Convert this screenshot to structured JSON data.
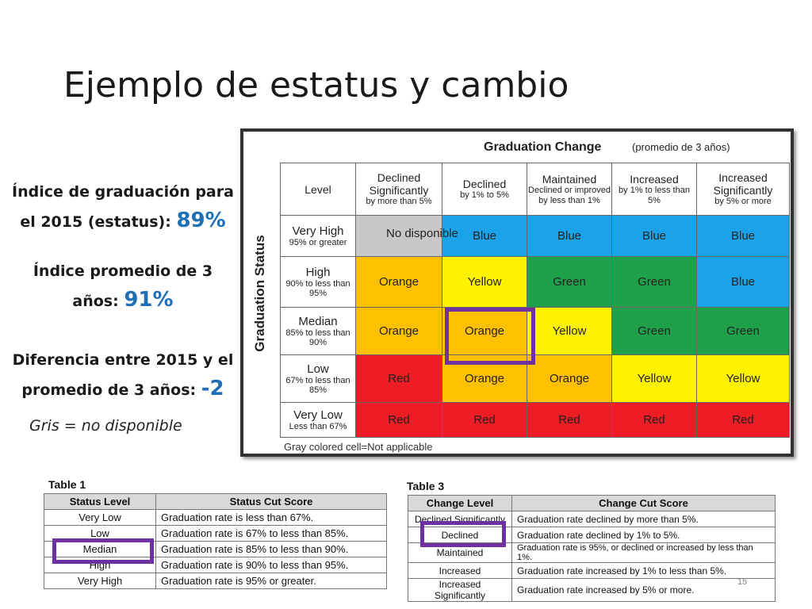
{
  "title": "Ejemplo de estatus y cambio",
  "stats": {
    "grad_line1": "Índice de graduación para",
    "grad_line2": "el 2015 (estatus):",
    "grad_value": "89%",
    "avg_line1": "Índice promedio de 3",
    "avg_line2": "años:",
    "avg_value": "91%",
    "diff_line1": "Diferencia entre 2015 y el",
    "diff_line2": "promedio de 3 años:",
    "diff_value": "-2",
    "gray_note": "Gris = no disponible"
  },
  "matrix": {
    "heading": "Graduation Change",
    "subheading": "(promedio de 3 años)",
    "axis_label": "Graduation Status",
    "corner": "Level",
    "columns": [
      {
        "title": "Declined Significantly",
        "sub": "by more than 5%"
      },
      {
        "title": "Declined",
        "sub": "by 1% to 5%"
      },
      {
        "title": "Maintained",
        "sub": "Declined or improved by less than 1%"
      },
      {
        "title": "Increased",
        "sub": "by 1% to less than 5%"
      },
      {
        "title": "Increased Significantly",
        "sub": "by 5% or more"
      }
    ],
    "rows": [
      {
        "level": "Very High",
        "range": "95% or greater",
        "cells": [
          "",
          "Blue",
          "Blue",
          "Blue",
          "Blue"
        ]
      },
      {
        "level": "High",
        "range": "90% to less than 95%",
        "cells": [
          "Orange",
          "Yellow",
          "Green",
          "Green",
          "Blue"
        ]
      },
      {
        "level": "Median",
        "range": "85% to less than 90%",
        "cells": [
          "Orange",
          "Orange",
          "Yellow",
          "Green",
          "Green"
        ]
      },
      {
        "level": "Low",
        "range": "67% to less than 85%",
        "cells": [
          "Red",
          "Orange",
          "Orange",
          "Yellow",
          "Yellow"
        ]
      },
      {
        "level": "Very Low",
        "range": "Less than 67%",
        "cells": [
          "Red",
          "Red",
          "Red",
          "Red",
          "Red"
        ]
      }
    ],
    "not_available_label": "No disponible",
    "gray_note": "Gray colored cell=Not applicable",
    "colors": {
      "Blue": "#1aa3e8",
      "Yellow": "#fff200",
      "Green": "#1fa149",
      "Orange": "#ffc000",
      "Red": "#ee1c24",
      "Gray": "#c8c8c8",
      "highlight": "#7030a0"
    }
  },
  "table1": {
    "caption": "Table 1",
    "headers": [
      "Status Level",
      "Status Cut Score"
    ],
    "rows": [
      [
        "Very Low",
        "Graduation rate is less than 67%."
      ],
      [
        "Low",
        "Graduation rate is 67% to less than 85%."
      ],
      [
        "Median",
        "Graduation rate is 85% to less than 90%."
      ],
      [
        "High",
        "Graduation rate is 90% to less than 95%."
      ],
      [
        "Very High",
        "Graduation rate is 95% or greater."
      ]
    ]
  },
  "table3": {
    "caption": "Table 3",
    "headers": [
      "Change Level",
      "Change Cut Score"
    ],
    "rows": [
      [
        "Declined Significantly",
        "Graduation rate declined by more than 5%."
      ],
      [
        "Declined",
        "Graduation rate declined by 1% to 5%."
      ],
      [
        "Maintained",
        "Graduation rate is 95%, or declined or increased by less than 1%."
      ],
      [
        "Increased",
        "Graduation rate increased by 1% to less than 5%."
      ],
      [
        "Increased Significantly",
        "Graduation rate increased by 5% or more."
      ]
    ]
  },
  "page_number": "15"
}
